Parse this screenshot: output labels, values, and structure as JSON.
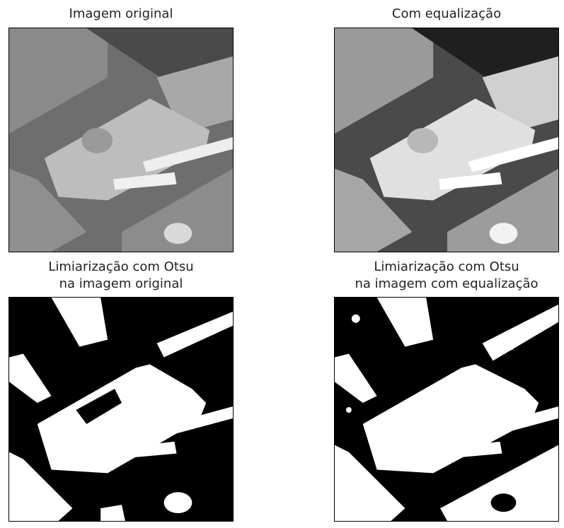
{
  "panels": [
    {
      "title_lines": [
        "Imagem original"
      ],
      "image": "grayscale-sem-chip-image"
    },
    {
      "title_lines": [
        "Com equalização"
      ],
      "image": "equalized-sem-chip-image"
    },
    {
      "title_lines": [
        "Limiarização com Otsu",
        "na imagem original"
      ],
      "image": "binary-otsu-original-image"
    },
    {
      "title_lines": [
        "Limiarização com Otsu",
        "na imagem com equalização"
      ],
      "image": "binary-otsu-equalized-image"
    }
  ],
  "colors": {
    "background": "#ffffff",
    "frame": "#000000",
    "binary_fg": "#ffffff",
    "binary_bg": "#000000"
  }
}
